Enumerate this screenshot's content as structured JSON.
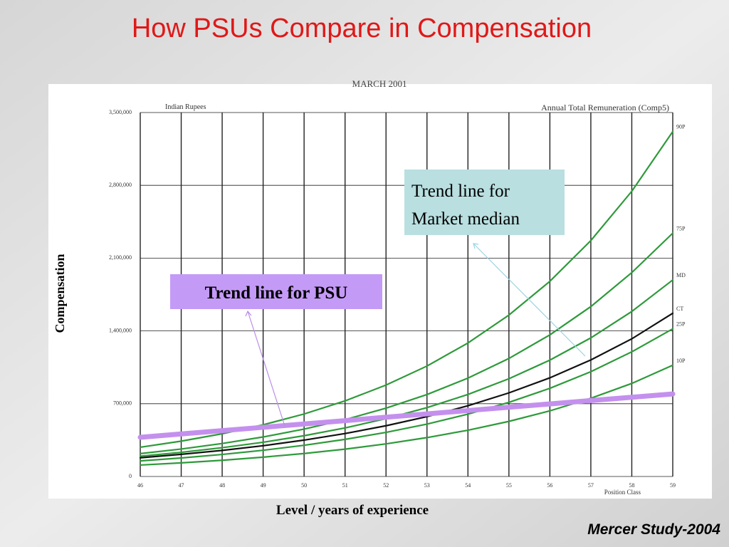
{
  "slide_title": "How PSUs Compare in Compensation",
  "footer": "Mercer Study-2004",
  "chart_data": {
    "type": "line",
    "header": "MARCH 2001",
    "title": "Annual Total Remuneration (Comp5)",
    "subtitle": "Indian Rupees",
    "x_label": "Position Class",
    "y_label": "Compensation",
    "x_axis_caption": "Level / years of experience",
    "x": [
      46,
      47,
      48,
      49,
      50,
      51,
      52,
      53,
      54,
      55,
      56,
      57,
      58,
      59
    ],
    "xlim": [
      46,
      59
    ],
    "xticks": [
      46,
      47,
      48,
      49,
      50,
      51,
      52,
      53,
      54,
      55,
      56,
      57,
      58,
      59
    ],
    "ylim": [
      0,
      3500000
    ],
    "yticks": [
      0,
      {
        "value": 700000,
        "label": "700,000"
      },
      {
        "value": 1400000,
        "label": "1,400,000"
      },
      {
        "value": 2100000,
        "label": "2,100,000"
      },
      {
        "value": 2800000,
        "label": "2,800,000"
      },
      {
        "value": 3500000,
        "label": "3,500,000"
      }
    ],
    "grid": true,
    "series": [
      {
        "name": "90P",
        "color": "#2e9a3a",
        "values": [
          281000,
          340000,
          411000,
          497000,
          601000,
          727000,
          879000,
          1062000,
          1284000,
          1552000,
          1877000,
          2269000,
          2743000,
          3317000
        ]
      },
      {
        "name": "75P",
        "color": "#2e9a3a",
        "values": [
          220000,
          264000,
          317000,
          380000,
          456000,
          547000,
          657000,
          788000,
          946000,
          1135000,
          1362000,
          1634000,
          1961000,
          2340000
        ]
      },
      {
        "name": "MD",
        "color": "#2e9a3a",
        "values": [
          195000,
          232000,
          277000,
          329000,
          392000,
          467000,
          556000,
          662000,
          789000,
          940000,
          1119000,
          1333000,
          1587000,
          1890000
        ]
      },
      {
        "name": "CT",
        "color": "#111111",
        "values": [
          180000,
          213000,
          251000,
          296000,
          350000,
          413000,
          488000,
          576000,
          680000,
          804000,
          949000,
          1121000,
          1324000,
          1570000
        ]
      },
      {
        "name": "25P",
        "color": "#2e9a3a",
        "values": [
          150000,
          178000,
          212000,
          252000,
          300000,
          357000,
          424000,
          504000,
          600000,
          713000,
          848000,
          1008000,
          1199000,
          1420000
        ]
      },
      {
        "name": "10P",
        "color": "#2e9a3a",
        "values": [
          110000,
          131000,
          156000,
          186000,
          221000,
          263000,
          314000,
          374000,
          445000,
          530000,
          631000,
          752000,
          895000,
          1070000
        ]
      },
      {
        "color": "#c490ee",
        "values": [
          377000,
          409000,
          441000,
          473000,
          505000,
          537000,
          570000,
          602000,
          634000,
          666000,
          698000,
          730000,
          762000,
          794000
        ]
      }
    ],
    "annotations": [
      "Trend line for Market median",
      "Trend line for PSU"
    ]
  }
}
